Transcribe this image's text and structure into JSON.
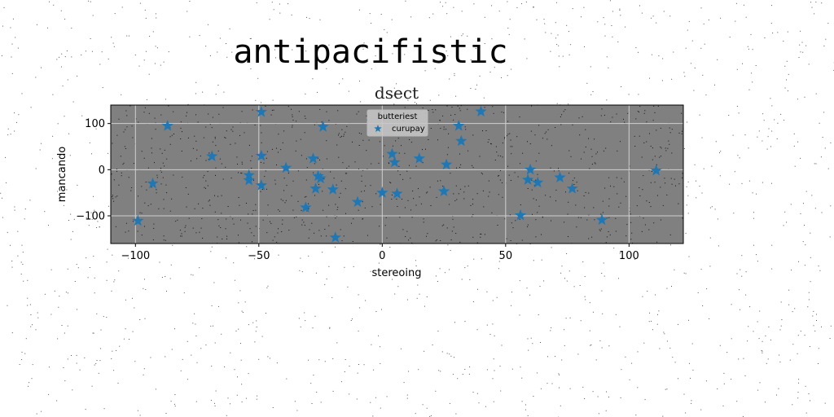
{
  "figure": {
    "suptitle": "antipacifistic"
  },
  "colors": {
    "page_background": "#ffffff",
    "plot_background": "#808080",
    "grid": "#d0d0d0",
    "marker": "#1f77b4",
    "noise_speck": "#000000"
  },
  "chart_data": {
    "type": "scatter",
    "title": "dsect",
    "xlabel": "stereoing",
    "ylabel": "mancando",
    "xlim": [
      -110,
      122
    ],
    "ylim": [
      -160,
      140
    ],
    "xticks": [
      -100,
      -50,
      0,
      50,
      100
    ],
    "yticks": [
      -100,
      0,
      100
    ],
    "grid": true,
    "legend": {
      "title": "butteriest",
      "position": "upper-center"
    },
    "marker": "star",
    "series": [
      {
        "name": "curupay",
        "color": "#1f77b4",
        "x": [
          -99,
          -93,
          -87,
          -69,
          -54,
          -54,
          -49,
          -49,
          -49,
          -39,
          -31,
          -28,
          -27,
          -26,
          -25,
          -24,
          -20,
          -19,
          -10,
          0,
          4,
          5,
          6,
          15,
          25,
          26,
          31,
          32,
          40,
          56,
          59,
          60,
          63,
          72,
          77,
          89,
          111
        ],
        "y": [
          -111,
          -30,
          95,
          29,
          -12,
          -23,
          125,
          30,
          -34,
          4,
          -82,
          24,
          -41,
          -14,
          -19,
          93,
          -43,
          -147,
          -70,
          -50,
          34,
          16,
          -52,
          24,
          -47,
          11,
          95,
          62,
          126,
          -99,
          -22,
          0,
          -28,
          -17,
          -41,
          -109,
          -2
        ]
      }
    ]
  }
}
